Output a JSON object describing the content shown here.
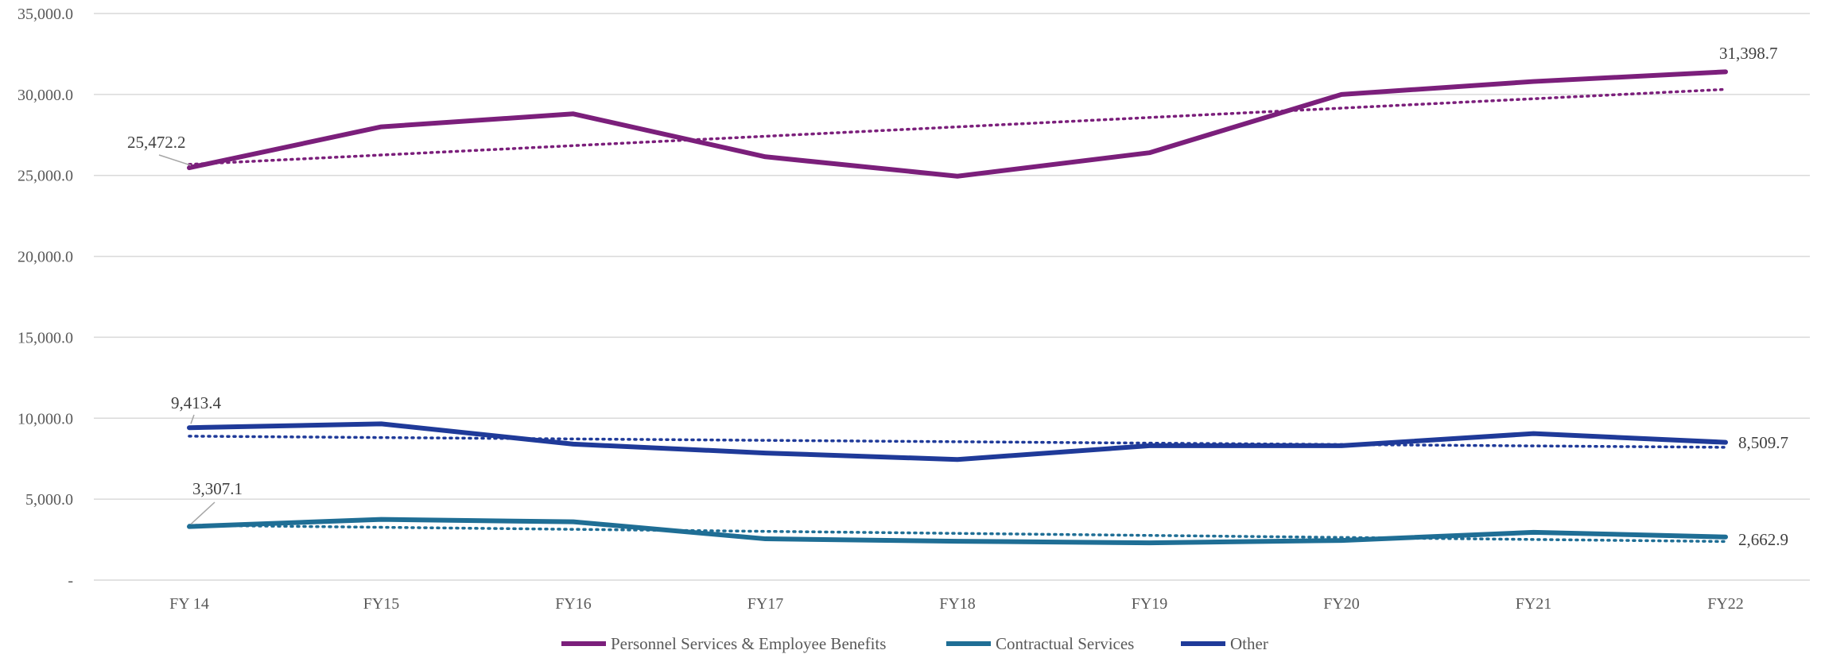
{
  "chart_data": {
    "type": "line",
    "title": "",
    "xlabel": "",
    "ylabel": "",
    "categories": [
      "FY 14",
      "FY15",
      "FY16",
      "FY17",
      "FY18",
      "FY19",
      "FY20",
      "FY21",
      "FY22"
    ],
    "ylim": [
      0,
      35000
    ],
    "yticks": [
      0,
      5000,
      10000,
      15000,
      20000,
      25000,
      30000,
      35000
    ],
    "ytick_labels": [
      "-",
      "5,000.0",
      "10,000.0",
      "15,000.0",
      "20,000.0",
      "25,000.0",
      "30,000.0",
      "35,000.0"
    ],
    "grid": true,
    "legend_position": "bottom",
    "series": [
      {
        "name": "Personnel Services & Employee Benefits",
        "color": "#7b1f7b",
        "values": [
          25472.2,
          28000,
          28800,
          26150,
          24950,
          26400,
          30000,
          30800,
          31398.7
        ],
        "trendline": true,
        "labels": {
          "first": "25,472.2",
          "last": "31,398.7"
        }
      },
      {
        "name": "Contractual Services",
        "color": "#1f6e95",
        "values": [
          3307.1,
          3750,
          3600,
          2550,
          2400,
          2300,
          2450,
          2950,
          2662.9
        ],
        "trendline": true,
        "labels": {
          "first": "3,307.1",
          "last": "2,662.9"
        }
      },
      {
        "name": "Other",
        "color": "#1f3a99",
        "values": [
          9413.4,
          9650,
          8400,
          7850,
          7450,
          8300,
          8300,
          9050,
          8509.7
        ],
        "trendline": true,
        "labels": {
          "first": "9,413.4",
          "last": "8,509.7"
        }
      }
    ]
  }
}
